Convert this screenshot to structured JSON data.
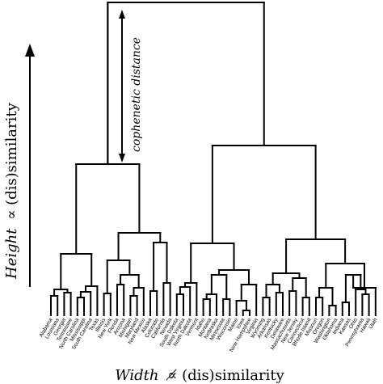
{
  "axis": {
    "y_label_main": "Height",
    "y_label_rest": "∝ (dis)similarity",
    "x_label_main": "Width",
    "x_label_rest": "∝̸ (dis)similarity"
  },
  "annotation": {
    "cophenetic_label": "cophenetic distance"
  },
  "leaves": [
    "Alabama",
    "Louisiana",
    "Georgia",
    "Tennessee",
    "North Carolina",
    "Mississippi",
    "South Carolina",
    "Texas",
    "Illinois",
    "New York",
    "Florida",
    "Arizona",
    "Michigan",
    "Maryland",
    "New Mexico",
    "Alaska",
    "Colorado",
    "California",
    "Nevada",
    "South Dakota",
    "West Virginia",
    "North Dakota",
    "Vermont",
    "Idaho",
    "Montana",
    "Nebraska",
    "Minnesota",
    "Wisconsin",
    "Maine",
    "Iowa",
    "New Hampshire",
    "Virginia",
    "Wyoming",
    "Arkansas",
    "Kentucky",
    "Delaware",
    "Massachusetts",
    "New Jersey",
    "Connecticut",
    "Rhode Island",
    "Missouri",
    "Oregon",
    "Washington",
    "Oklahoma",
    "Indiana",
    "Kansas",
    "Ohio",
    "Pennsylvania",
    "Hawaii",
    "Utah"
  ],
  "colors": {
    "ink": "#000000",
    "background": "#ffffff"
  }
}
